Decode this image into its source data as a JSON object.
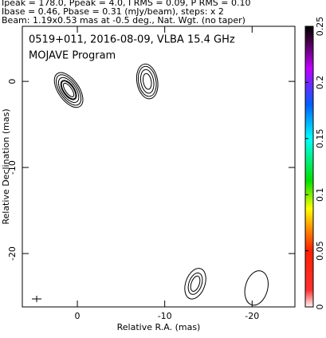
{
  "header": [
    "Ipeak = 178.0, Ppeak = 4.0, I RMS = 0.09, P RMS = 0.10",
    "Ibase = 0.46, Pbase = 0.31 (mJy/beam), steps: x 2",
    "Beam: 1.19x0.53 mas at -0.5 deg., Nat. Wgt. (no taper)"
  ],
  "chart_data": {
    "type": "contour",
    "title": "0519+011, 2016-08-09, VLBA 15.4 GHz",
    "subtitle": "MOJAVE Program",
    "x_label": "Relative R.A. (mas)",
    "y_label": "Relative Declination (mas)",
    "xlim": [
      6.3,
      -24.9
    ],
    "xticks": [
      0,
      -10,
      -20
    ],
    "ylim": [
      -26.2,
      6.4
    ],
    "yticks": [
      0,
      -10,
      -20
    ],
    "components": [
      {
        "x": 1,
        "y": -1
      },
      {
        "x": -8,
        "y": 0
      },
      {
        "x": -13.5,
        "y": -23.5
      },
      {
        "x": -20.5,
        "y": -24
      }
    ],
    "colorbar": {
      "ylim": [
        0,
        0.25
      ],
      "yticks": [
        0,
        0.05,
        0.1,
        0.15,
        0.2,
        0.25
      ]
    }
  }
}
